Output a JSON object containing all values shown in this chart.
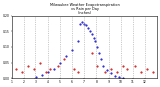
{
  "title_line1": "Milwaukee Weather Evapotranspiration",
  "title_line2": "vs Rain per Day",
  "title_line3": "(Inches)",
  "et_color": "#0000cc",
  "rain_color": "#cc0000",
  "grid_color": "#888888",
  "bg_color": "#ffffff",
  "plot_bg": "#ffffff",
  "title_color": "#000000",
  "tick_color": "#000000",
  "spine_color": "#000000",
  "ylim": [
    0.0,
    0.2
  ],
  "xlim": [
    0,
    365
  ],
  "month_starts": [
    0,
    31,
    59,
    90,
    120,
    151,
    181,
    212,
    243,
    273,
    304,
    334,
    365
  ],
  "month_labels": [
    "1",
    "2",
    "3",
    "4",
    "5",
    "6",
    "7",
    "8",
    "9",
    "10",
    "11",
    "12"
  ],
  "et_days": [
    60,
    75,
    90,
    105,
    120,
    135,
    150,
    165,
    172,
    175,
    180,
    185,
    190,
    195,
    200,
    205,
    210,
    215,
    220,
    225,
    230,
    240,
    250,
    260,
    270,
    280
  ],
  "et_vals": [
    0.005,
    0.01,
    0.02,
    0.03,
    0.05,
    0.07,
    0.09,
    0.12,
    0.175,
    0.18,
    0.175,
    0.17,
    0.16,
    0.15,
    0.14,
    0.13,
    0.12,
    0.1,
    0.08,
    0.06,
    0.04,
    0.025,
    0.015,
    0.008,
    0.004,
    0.002
  ],
  "rain_days": [
    10,
    25,
    40,
    55,
    70,
    85,
    95,
    115,
    130,
    155,
    165,
    200,
    215,
    235,
    250,
    265,
    278,
    290,
    310,
    325,
    340,
    355
  ],
  "rain_vals": [
    0.03,
    0.02,
    0.04,
    0.03,
    0.05,
    0.02,
    0.03,
    0.04,
    0.06,
    0.03,
    0.02,
    0.08,
    0.04,
    0.02,
    0.03,
    0.02,
    0.04,
    0.03,
    0.04,
    0.02,
    0.03,
    0.02
  ]
}
